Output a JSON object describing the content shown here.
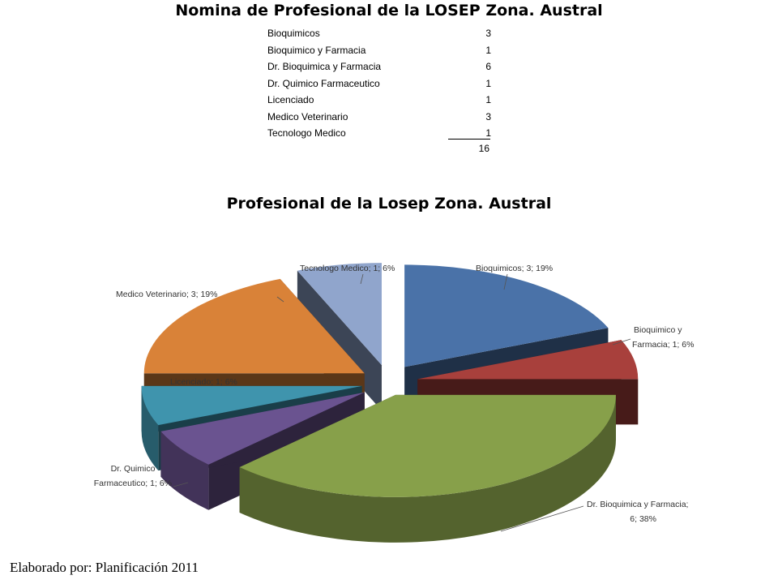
{
  "header": {
    "title": "Nomina de Profesional de la LOSEP Zona. Austral"
  },
  "table": {
    "rows": [
      {
        "label": "Bioquimicos",
        "value": "3"
      },
      {
        "label": "Bioquimico y Farmacia",
        "value": "1"
      },
      {
        "label": "Dr. Bioquimica y Farmacia",
        "value": "6"
      },
      {
        "label": "Dr. Quimico Farmaceutico",
        "value": "1"
      },
      {
        "label": "Licenciado",
        "value": "1"
      },
      {
        "label": "Medico Veterinario",
        "value": "3"
      },
      {
        "label": "Tecnologo Medico",
        "value": "1"
      }
    ],
    "total": "16"
  },
  "chart_data": {
    "type": "pie",
    "title": "Profesional de la Losep Zona. Austral",
    "categories": [
      "Bioquimicos",
      "Bioquimico y Farmacia",
      "Dr. Bioquimica y Farmacia",
      "Dr. Quimico Farmaceutico",
      "Licenciado",
      "Medico Veterinario",
      "Tecnologo Medico"
    ],
    "values": [
      3,
      1,
      6,
      1,
      1,
      3,
      1
    ],
    "percentages": [
      19,
      6,
      38,
      6,
      6,
      19,
      6
    ],
    "colors": [
      "#4a72a8",
      "#a8403c",
      "#87a04a",
      "#6a5390",
      "#3f94ad",
      "#d98238",
      "#90a5cc"
    ],
    "data_labels": [
      [
        "Bioquimicos; 3; 19%"
      ],
      [
        "Bioquimico y",
        "Farmacia; 1; 6%"
      ],
      [
        "Dr. Bioquimica y Farmacia;",
        "6; 38%"
      ],
      [
        "Dr. Quimico",
        "Farmaceutico; 1; 6%"
      ],
      [
        "Licenciado; 1; 6%"
      ],
      [
        "Medico Veterinario; 3; 19%"
      ],
      [
        "Tecnologo Medico; 1; 6%"
      ]
    ],
    "legend": "none",
    "style": "3d-exploded"
  },
  "footer": {
    "text": "Elaborado por: Planificación 2011"
  }
}
